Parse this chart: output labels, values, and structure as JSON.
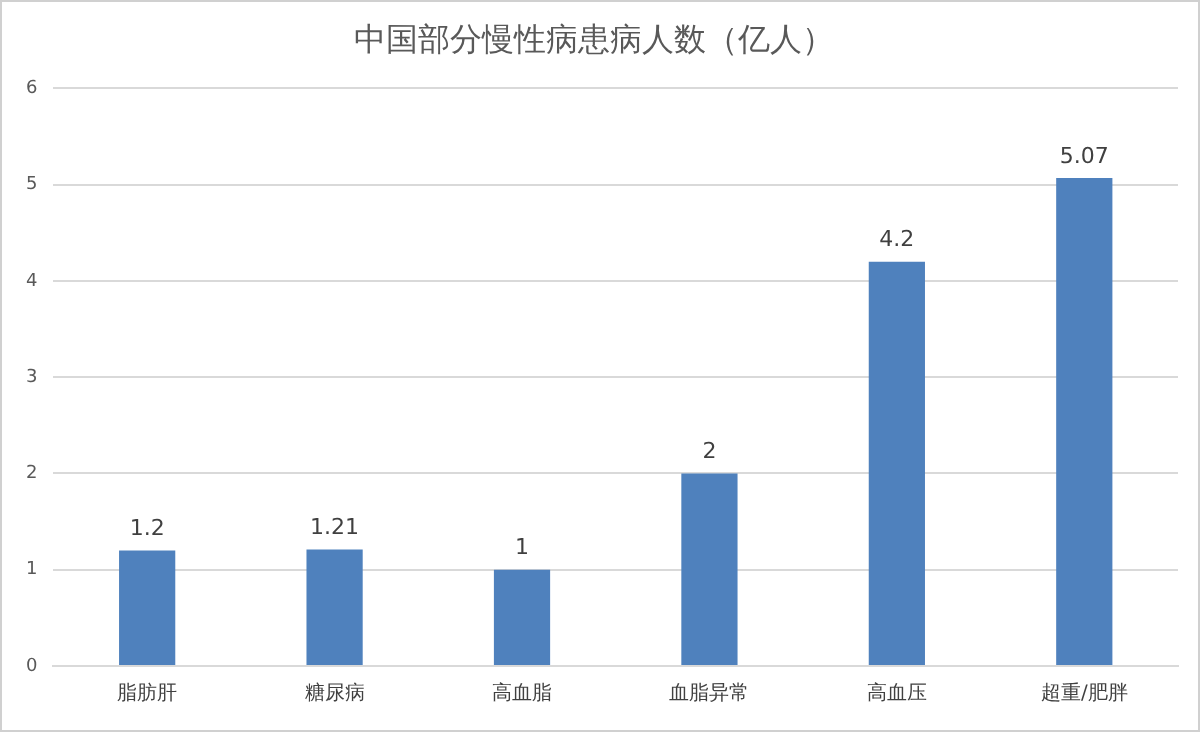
{
  "chart_data": {
    "type": "bar",
    "title": "中国部分慢性病患病人数（亿人）",
    "categories": [
      "脂肪肝",
      "糖尿病",
      "高血脂",
      "血脂异常",
      "高血压",
      "超重/肥胖"
    ],
    "values": [
      1.2,
      1.21,
      1,
      2,
      4.2,
      5.07
    ],
    "color": "#4f81bd",
    "ylim": [
      0,
      6
    ],
    "yticks": [
      0,
      1,
      2,
      3,
      4,
      5,
      6
    ],
    "grid": "y",
    "data_labels": true
  }
}
